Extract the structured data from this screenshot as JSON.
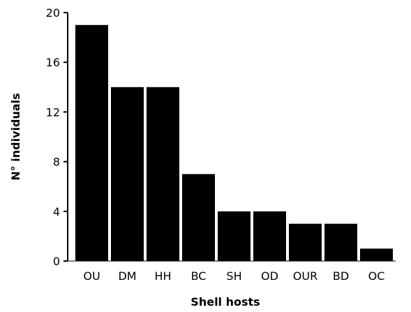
{
  "chart_data": {
    "type": "bar",
    "title": "",
    "xlabel": "Shell hosts",
    "ylabel": "N° individuals",
    "categories": [
      "OU",
      "DM",
      "HH",
      "BC",
      "SH",
      "OD",
      "OUR",
      "BD",
      "OC"
    ],
    "values": [
      19,
      14,
      14,
      7,
      4,
      4,
      3,
      3,
      1
    ],
    "ylim": [
      0,
      20
    ],
    "yticks": [
      "0",
      "4",
      "8",
      "12",
      "16",
      "20"
    ],
    "grid": false,
    "legend": "none",
    "bar_color": "#000000"
  }
}
